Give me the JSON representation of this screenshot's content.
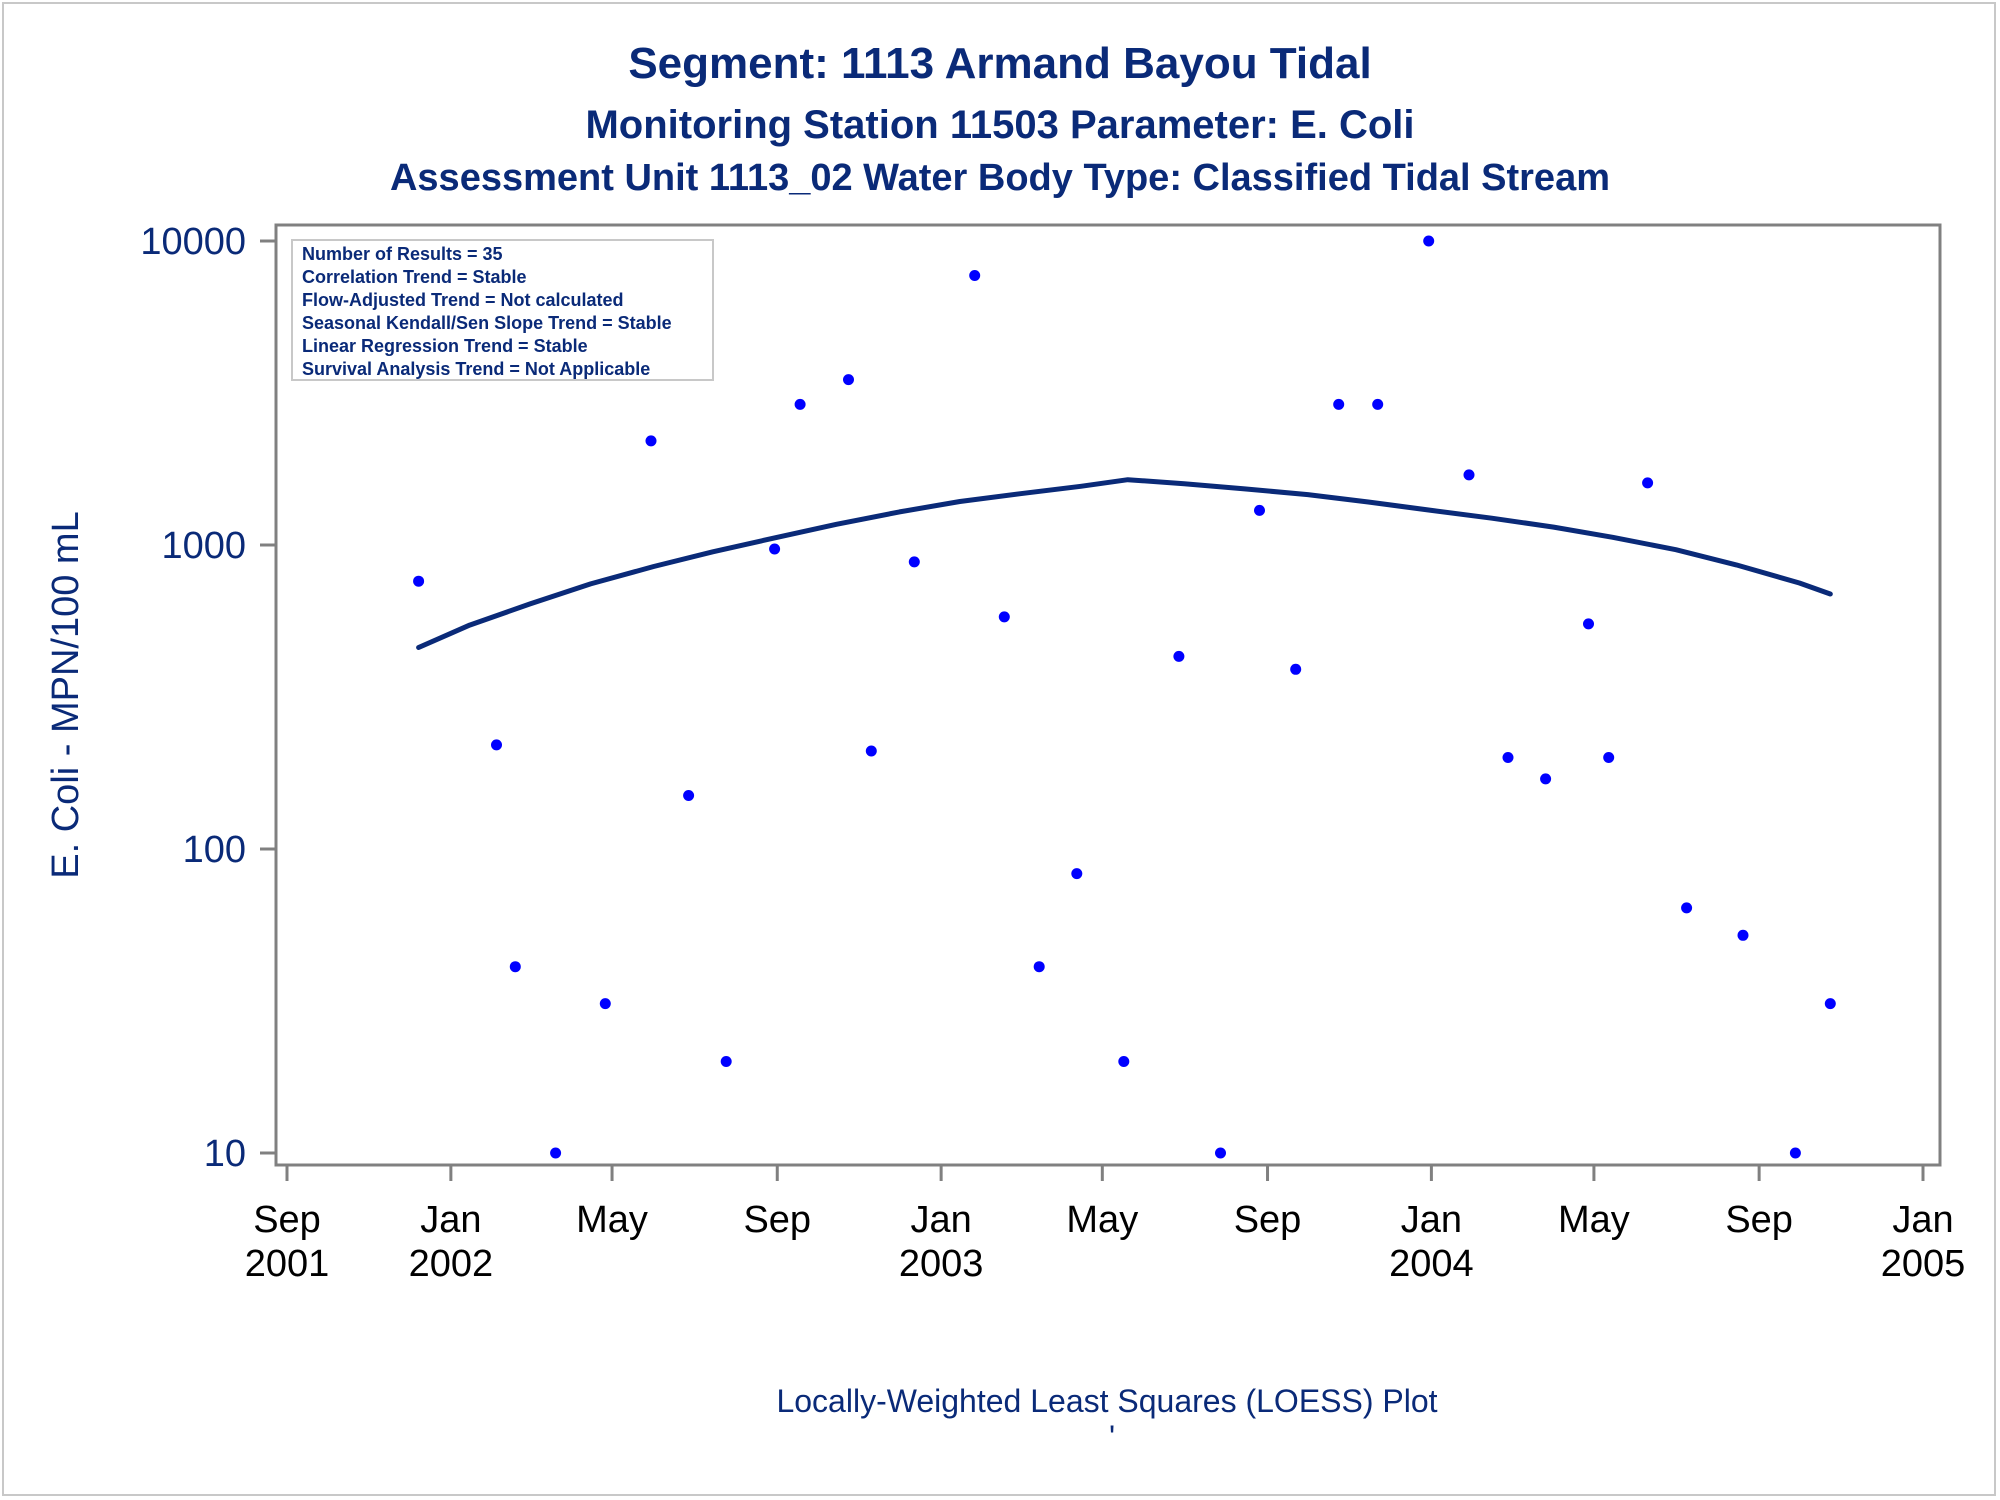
{
  "titles": [
    "Segment: 1113  Armand Bayou Tidal",
    "Monitoring Station 11503 Parameter: E. Coli",
    "Assessment Unit 1113_02   Water Body Type: Classified Tidal Stream"
  ],
  "footnote": "Locally-Weighted Least Squares (LOESS) Plot",
  "footnote_mark": "'",
  "info_box": [
    "Number of Results = 35",
    "Correlation Trend = Stable",
    "Flow-Adjusted Trend = Not calculated",
    "Seasonal Kendall/Sen Slope Trend = Stable",
    "Linear Regression Trend = Stable",
    "Survival Analysis Trend = Not Applicable"
  ],
  "colors": {
    "title": "#0a2a78",
    "points": "#0000ff",
    "loess": "#0a2a78",
    "axis": "#808080"
  },
  "chart_data": {
    "type": "scatter",
    "title": "Segment: 1113  Armand Bayou Tidal",
    "ylabel": "E. Coli - MPN/100 mL",
    "xlabel": "",
    "yscale": "log",
    "ylim": [
      10,
      10000
    ],
    "xlim": [
      "2001-09-01",
      "2005-01-01"
    ],
    "yticks": [
      "10",
      "100",
      "1000",
      "10000"
    ],
    "xticks": [
      {
        "date": "2001-09-01",
        "label1": "Sep",
        "label2": "2001"
      },
      {
        "date": "2002-01-01",
        "label1": "Jan",
        "label2": "2002"
      },
      {
        "date": "2002-05-01",
        "label1": "May",
        "label2": ""
      },
      {
        "date": "2002-09-01",
        "label1": "Sep",
        "label2": ""
      },
      {
        "date": "2003-01-01",
        "label1": "Jan",
        "label2": "2003"
      },
      {
        "date": "2003-05-01",
        "label1": "May",
        "label2": ""
      },
      {
        "date": "2003-09-01",
        "label1": "Sep",
        "label2": ""
      },
      {
        "date": "2004-01-01",
        "label1": "Jan",
        "label2": "2004"
      },
      {
        "date": "2004-05-01",
        "label1": "May",
        "label2": ""
      },
      {
        "date": "2004-09-01",
        "label1": "Sep",
        "label2": ""
      },
      {
        "date": "2005-01-01",
        "label1": "Jan",
        "label2": "2005"
      }
    ],
    "points": [
      {
        "x": "2001-12-08",
        "y": 760
      },
      {
        "x": "2002-02-04",
        "y": 220
      },
      {
        "x": "2002-02-18",
        "y": 41
      },
      {
        "x": "2002-03-20",
        "y": 10
      },
      {
        "x": "2002-04-26",
        "y": 31
      },
      {
        "x": "2002-05-30",
        "y": 2200
      },
      {
        "x": "2002-06-27",
        "y": 150
      },
      {
        "x": "2002-07-25",
        "y": 20
      },
      {
        "x": "2002-08-30",
        "y": 970
      },
      {
        "x": "2002-09-18",
        "y": 2900
      },
      {
        "x": "2002-10-24",
        "y": 3500
      },
      {
        "x": "2002-11-10",
        "y": 210
      },
      {
        "x": "2002-12-12",
        "y": 880
      },
      {
        "x": "2003-01-26",
        "y": 7700
      },
      {
        "x": "2003-02-17",
        "y": 580
      },
      {
        "x": "2003-03-15",
        "y": 41
      },
      {
        "x": "2003-04-12",
        "y": 83
      },
      {
        "x": "2003-05-17",
        "y": 20
      },
      {
        "x": "2003-06-27",
        "y": 430
      },
      {
        "x": "2003-07-28",
        "y": 10
      },
      {
        "x": "2003-08-26",
        "y": 1300
      },
      {
        "x": "2003-09-22",
        "y": 390
      },
      {
        "x": "2003-10-24",
        "y": 2900
      },
      {
        "x": "2003-11-22",
        "y": 2900
      },
      {
        "x": "2003-12-30",
        "y": 10000
      },
      {
        "x": "2004-01-29",
        "y": 1700
      },
      {
        "x": "2004-02-27",
        "y": 200
      },
      {
        "x": "2004-03-26",
        "y": 170
      },
      {
        "x": "2004-04-27",
        "y": 550
      },
      {
        "x": "2004-05-12",
        "y": 200
      },
      {
        "x": "2004-06-10",
        "y": 1600
      },
      {
        "x": "2004-07-09",
        "y": 64
      },
      {
        "x": "2004-08-20",
        "y": 52
      },
      {
        "x": "2004-09-28",
        "y": 10
      },
      {
        "x": "2004-10-24",
        "y": 31
      }
    ],
    "loess_curve": [
      {
        "x": "2001-12-08",
        "y": 460
      },
      {
        "x": "2002-01-15",
        "y": 545
      },
      {
        "x": "2002-03-01",
        "y": 640
      },
      {
        "x": "2002-04-15",
        "y": 745
      },
      {
        "x": "2002-06-01",
        "y": 850
      },
      {
        "x": "2002-07-15",
        "y": 950
      },
      {
        "x": "2002-09-01",
        "y": 1060
      },
      {
        "x": "2002-10-15",
        "y": 1170
      },
      {
        "x": "2002-12-01",
        "y": 1285
      },
      {
        "x": "2003-01-15",
        "y": 1390
      },
      {
        "x": "2003-03-01",
        "y": 1475
      },
      {
        "x": "2003-04-15",
        "y": 1560
      },
      {
        "x": "2003-05-20",
        "y": 1640
      },
      {
        "x": "2003-07-01",
        "y": 1590
      },
      {
        "x": "2003-08-15",
        "y": 1530
      },
      {
        "x": "2003-10-01",
        "y": 1465
      },
      {
        "x": "2003-11-15",
        "y": 1385
      },
      {
        "x": "2004-01-01",
        "y": 1300
      },
      {
        "x": "2004-02-15",
        "y": 1225
      },
      {
        "x": "2004-04-01",
        "y": 1145
      },
      {
        "x": "2004-05-15",
        "y": 1060
      },
      {
        "x": "2004-07-01",
        "y": 965
      },
      {
        "x": "2004-08-15",
        "y": 860
      },
      {
        "x": "2004-10-01",
        "y": 750
      },
      {
        "x": "2004-10-24",
        "y": 690
      }
    ],
    "grid": false,
    "legend": "top-left"
  }
}
